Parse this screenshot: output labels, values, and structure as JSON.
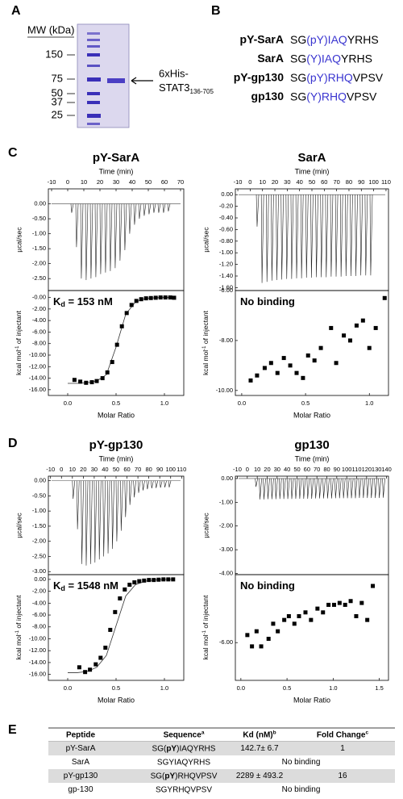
{
  "panel_labels": [
    "A",
    "B",
    "C",
    "D",
    "E"
  ],
  "gel": {
    "axis_title": "MW (kDa)",
    "markers": [
      "150",
      "75",
      "50",
      "37",
      "25"
    ],
    "band_label": [
      "6xHis-",
      "STAT3",
      "136-705"
    ]
  },
  "peptides": [
    {
      "name": "pY-SarA",
      "seq": [
        "SG",
        "(pY)IAQ",
        "YRHS"
      ]
    },
    {
      "name": "SarA",
      "seq": [
        "SG",
        "(Y)IAQ",
        "YRHS"
      ]
    },
    {
      "name": "pY-gp130",
      "seq": [
        "SG",
        "(pY)RHQ",
        "VPSV"
      ]
    },
    {
      "name": "gp130",
      "seq": [
        "SG",
        "(Y)RHQ",
        "VPSV"
      ]
    }
  ],
  "chart_data": [
    {
      "type": "thermogram",
      "title": "pY-SarA",
      "xaxis": "top",
      "xlabel": "Time (min)",
      "ylabel": "µcal/sec",
      "xlim": [
        -12,
        72
      ],
      "ylim": [
        -2.9,
        0.5
      ],
      "xticks": [
        -10,
        0,
        10,
        20,
        30,
        40,
        50,
        60,
        70
      ],
      "yticks": [
        {
          "value": 0,
          "label": "0.00"
        },
        {
          "value": -0.5,
          "label": "-0.50"
        },
        {
          "value": -1,
          "label": "-1.00"
        },
        {
          "value": -1.5,
          "label": "-1.50"
        },
        {
          "value": -2,
          "label": "-2.00"
        },
        {
          "value": -2.5,
          "label": "-2.50"
        }
      ],
      "x": [
        2,
        5,
        8,
        11,
        14,
        17,
        20,
        23,
        26,
        29,
        32,
        35,
        38,
        41,
        44,
        47,
        50,
        53,
        56,
        59,
        62
      ],
      "values": [
        -0.3,
        -1.45,
        -2.5,
        -2.55,
        -2.5,
        -2.45,
        -2.35,
        -2.3,
        -2.25,
        -2.15,
        -1.9,
        -1.55,
        -1.0,
        -0.7,
        -0.5,
        -0.4,
        -0.35,
        -0.3,
        -0.3,
        -0.3,
        -0.25
      ]
    },
    {
      "type": "isotherm",
      "xlabel": "Molar Ratio",
      "ylabel": [
        "kcal mol",
        "-1",
        " of injectant"
      ],
      "annotation": [
        "K",
        "d",
        " = 153 nM"
      ],
      "xlim": [
        -0.2,
        1.2
      ],
      "ylim": [
        -17,
        1.2
      ],
      "xticks": [
        {
          "value": 0,
          "label": "0.0"
        },
        0.5,
        {
          "value": 1,
          "label": "1.0"
        }
      ],
      "yticks": [
        {
          "value": 0,
          "label": "-0.00"
        },
        {
          "value": -2,
          "label": "-2.00"
        },
        {
          "value": -4,
          "label": "-4.00"
        },
        {
          "value": -6,
          "label": "-6.00"
        },
        {
          "value": -8,
          "label": "-8.00"
        },
        {
          "value": -10,
          "label": "-10.00"
        },
        {
          "value": -12,
          "label": "-12.00"
        },
        {
          "value": -14,
          "label": "-14.00"
        },
        {
          "value": -16,
          "label": "-16.00"
        }
      ],
      "x": [
        0.07,
        0.13,
        0.19,
        0.25,
        0.3,
        0.36,
        0.41,
        0.46,
        0.51,
        0.56,
        0.61,
        0.66,
        0.71,
        0.76,
        0.81,
        0.86,
        0.91,
        0.96,
        1.01,
        1.06,
        1.1
      ],
      "values": [
        -14.3,
        -14.6,
        -14.8,
        -14.7,
        -14.5,
        -14.0,
        -13.0,
        -11.2,
        -8.2,
        -5.0,
        -2.7,
        -1.3,
        -0.6,
        -0.3,
        -0.15,
        -0.1,
        -0.05,
        0,
        0,
        0,
        -0.05
      ],
      "fit_x": [
        0,
        0.1,
        0.2,
        0.3,
        0.4,
        0.5,
        0.6,
        0.7,
        0.8,
        0.9,
        1.0,
        1.1
      ],
      "fit_values": [
        -14.9,
        -14.9,
        -14.8,
        -14.5,
        -13.4,
        -8.6,
        -2.9,
        -0.8,
        -0.2,
        -0.05,
        0,
        0
      ]
    },
    {
      "type": "thermogram",
      "title": "SarA",
      "xaxis": "top",
      "xlabel": "Time (min)",
      "ylabel": "µcal/sec",
      "xlim": [
        -12,
        112
      ],
      "ylim": [
        -1.65,
        0.1
      ],
      "xticks": [
        -10,
        0,
        10,
        20,
        30,
        40,
        50,
        60,
        70,
        80,
        90,
        100,
        110
      ],
      "yticks": [
        {
          "value": 0,
          "label": "0.00"
        },
        {
          "value": -0.2,
          "label": "-0.20"
        },
        {
          "value": -0.4,
          "label": "-0.40"
        },
        {
          "value": -0.6,
          "label": "-0.60"
        },
        {
          "value": -0.8,
          "label": "-0.80"
        },
        {
          "value": -1,
          "label": "-1.00"
        },
        {
          "value": -1.2,
          "label": "-1.20"
        },
        {
          "value": -1.4,
          "label": "-1.40"
        },
        {
          "value": -1.6,
          "label": "-1.60"
        }
      ],
      "x": [
        5,
        9,
        13,
        17,
        21,
        25,
        29,
        33,
        37,
        41,
        45,
        49,
        53,
        57,
        61,
        65,
        69,
        73,
        77,
        81,
        85,
        89,
        93,
        97
      ],
      "values": [
        -0.55,
        -1.52,
        -1.5,
        -1.48,
        -1.47,
        -1.46,
        -1.45,
        -1.45,
        -1.44,
        -1.44,
        -1.43,
        -1.43,
        -1.42,
        -1.42,
        -1.42,
        -1.41,
        -1.41,
        -1.41,
        -1.4,
        -1.4,
        -1.4,
        -1.39,
        -1.39,
        -1.39
      ]
    },
    {
      "type": "isotherm",
      "xlabel": "Molar Ratio",
      "ylabel": [
        "kcal mol",
        "-1",
        " of injectant"
      ],
      "annotation": [
        "No binding"
      ],
      "xlim": [
        -0.05,
        1.15
      ],
      "ylim": [
        -10.2,
        -6.0
      ],
      "xticks": [
        {
          "value": 0,
          "label": "0.0"
        },
        0.5,
        {
          "value": 1,
          "label": "1.0"
        }
      ],
      "yticks": [
        {
          "value": -6,
          "label": "-6.00"
        },
        {
          "value": -8,
          "label": "-8.00"
        },
        {
          "value": -10,
          "label": "-10.00"
        }
      ],
      "x": [
        0.07,
        0.12,
        0.18,
        0.23,
        0.28,
        0.33,
        0.38,
        0.43,
        0.48,
        0.52,
        0.57,
        0.62,
        0.7,
        0.74,
        0.8,
        0.85,
        0.9,
        0.95,
        1.0,
        1.05,
        1.12
      ],
      "values": [
        -9.6,
        -9.4,
        -9.1,
        -8.9,
        -9.3,
        -8.7,
        -9.0,
        -9.3,
        -9.5,
        -8.6,
        -8.8,
        -8.3,
        -7.5,
        -8.9,
        -7.8,
        -8.0,
        -7.4,
        -7.2,
        -8.3,
        -7.5,
        -6.3
      ]
    },
    {
      "type": "thermogram",
      "title": "pY-gp130",
      "xaxis": "top",
      "xlabel": "Time (min)",
      "ylabel": "µcal/sec",
      "xlim": [
        -12,
        112
      ],
      "ylim": [
        -3.1,
        0.15
      ],
      "xticks": [
        -10,
        0,
        10,
        20,
        30,
        40,
        50,
        60,
        70,
        80,
        90,
        100,
        110
      ],
      "yticks": [
        {
          "value": 0,
          "label": "0.00"
        },
        {
          "value": -0.5,
          "label": "-0.50"
        },
        {
          "value": -1,
          "label": "-1.00"
        },
        {
          "value": -1.5,
          "label": "-1.50"
        },
        {
          "value": -2,
          "label": "-2.00"
        },
        {
          "value": -2.5,
          "label": "-2.50"
        },
        {
          "value": -3,
          "label": "-3.00"
        }
      ],
      "x": [
        10,
        14,
        18,
        22,
        26,
        30,
        34,
        38,
        42,
        46,
        50,
        54,
        58,
        62,
        66,
        70,
        74,
        78,
        82,
        86,
        90,
        94,
        98
      ],
      "values": [
        -0.6,
        -1.6,
        -2.75,
        -2.8,
        -2.75,
        -2.7,
        -2.6,
        -2.5,
        -2.4,
        -2.25,
        -2.0,
        -1.65,
        -1.2,
        -0.8,
        -0.55,
        -0.4,
        -0.32,
        -0.28,
        -0.25,
        -0.24,
        -0.23,
        -0.22,
        -0.22
      ]
    },
    {
      "type": "isotherm",
      "xlabel": "Molar Ratio",
      "ylabel": [
        "kcal mol",
        "-1",
        " of injectant"
      ],
      "annotation": [
        "K",
        "d",
        " = 1548 nM"
      ],
      "xlim": [
        -0.2,
        1.2
      ],
      "ylim": [
        -17,
        0.8
      ],
      "xticks": [
        {
          "value": 0,
          "label": "0.0"
        },
        0.5,
        {
          "value": 1,
          "label": "1.0"
        }
      ],
      "yticks": [
        {
          "value": 0,
          "label": "0.00"
        },
        {
          "value": -2,
          "label": "-2.00"
        },
        {
          "value": -4,
          "label": "-4.00"
        },
        {
          "value": -6,
          "label": "-6.00"
        },
        {
          "value": -8,
          "label": "-8.00"
        },
        {
          "value": -10,
          "label": "-10.00"
        },
        {
          "value": -12,
          "label": "-12.00"
        },
        {
          "value": -14,
          "label": "-14.00"
        },
        {
          "value": -16,
          "label": "-16.00"
        }
      ],
      "x": [
        0.12,
        0.18,
        0.23,
        0.29,
        0.34,
        0.39,
        0.44,
        0.49,
        0.54,
        0.59,
        0.64,
        0.69,
        0.74,
        0.79,
        0.84,
        0.89,
        0.94,
        0.99,
        1.04,
        1.09
      ],
      "values": [
        -14.8,
        -15.6,
        -15.2,
        -14.3,
        -13.2,
        -11.5,
        -8.5,
        -5.5,
        -3.2,
        -1.7,
        -0.9,
        -0.5,
        -0.3,
        -0.2,
        -0.1,
        -0.1,
        -0.05,
        0,
        0,
        0
      ],
      "fit_x": [
        0,
        0.1,
        0.2,
        0.3,
        0.4,
        0.5,
        0.6,
        0.7,
        0.8,
        0.9,
        1.0,
        1.1
      ],
      "fit_values": [
        -15.7,
        -15.7,
        -15.5,
        -14.8,
        -12.8,
        -7.8,
        -2.8,
        -0.9,
        -0.3,
        -0.1,
        0,
        0
      ]
    },
    {
      "type": "thermogram",
      "title": "gp130",
      "xaxis": "top",
      "xlabel": "Time (min)",
      "ylabel": "µcal/sec",
      "xlim": [
        -12,
        142
      ],
      "ylim": [
        -4.05,
        0.1
      ],
      "xticks": [
        -10,
        0,
        10,
        20,
        30,
        40,
        50,
        60,
        70,
        80,
        90,
        100,
        110,
        120,
        130,
        140
      ],
      "yticks": [
        {
          "value": 0,
          "label": "0.00"
        },
        {
          "value": -1,
          "label": "-1.00"
        },
        {
          "value": -2,
          "label": "-2.00"
        },
        {
          "value": -3,
          "label": "-3.00"
        },
        {
          "value": -4,
          "label": "-4.00"
        }
      ],
      "x": [
        8,
        12,
        16,
        20,
        24,
        28,
        32,
        36,
        40,
        44,
        48,
        52,
        56,
        60,
        64,
        68,
        72,
        76,
        80,
        84,
        88,
        92,
        96,
        100,
        104,
        108,
        112,
        116,
        120,
        124,
        128,
        132,
        136
      ],
      "values": [
        -0.35,
        -0.88,
        -0.88,
        -0.87,
        -0.87,
        -0.87,
        -0.86,
        -0.86,
        -0.86,
        -0.86,
        -0.85,
        -0.85,
        -0.85,
        -0.85,
        -0.85,
        -0.84,
        -0.84,
        -0.84,
        -0.84,
        -0.84,
        -0.83,
        -0.83,
        -0.83,
        -0.83,
        -0.83,
        -0.83,
        -0.82,
        -0.82,
        -0.82,
        -0.82,
        -0.82,
        -0.82,
        -0.81
      ]
    },
    {
      "type": "isotherm",
      "xlabel": "Molar Ratio",
      "ylabel": [
        "kcal mol",
        "-1",
        " of injectant"
      ],
      "annotation": [
        "No binding"
      ],
      "xlim": [
        -0.06,
        1.6
      ],
      "ylim": [
        -7.0,
        -4.2
      ],
      "xticks": [
        {
          "value": 0,
          "label": "0.0"
        },
        0.5,
        {
          "value": 1,
          "label": "1.0"
        },
        1.5
      ],
      "yticks": [
        {
          "value": -6,
          "label": "-6.00"
        }
      ],
      "x": [
        0.07,
        0.12,
        0.17,
        0.22,
        0.3,
        0.35,
        0.4,
        0.47,
        0.52,
        0.58,
        0.63,
        0.7,
        0.76,
        0.83,
        0.89,
        0.95,
        1.01,
        1.07,
        1.13,
        1.19,
        1.25,
        1.31,
        1.37,
        1.43
      ],
      "values": [
        -5.8,
        -6.1,
        -5.7,
        -6.1,
        -5.9,
        -5.5,
        -5.7,
        -5.4,
        -5.3,
        -5.5,
        -5.3,
        -5.2,
        -5.4,
        -5.1,
        -5.2,
        -5.0,
        -5.0,
        -4.95,
        -5.0,
        -4.9,
        -5.3,
        -4.95,
        -5.4,
        -4.5
      ]
    }
  ],
  "table": {
    "headers": [
      [
        "Peptide"
      ],
      [
        "Sequence",
        "a"
      ],
      [
        "Kd (nM)",
        "b"
      ],
      [
        "Fold Change",
        "c"
      ]
    ],
    "rows": [
      {
        "peptide": "pY-SarA",
        "sequence": [
          "SG(",
          "pY",
          ")IAQYRHS"
        ],
        "kd": "142.7± 6.7",
        "fold": "1"
      },
      {
        "peptide": "SarA",
        "sequence": [
          "SGYIAQYRHS"
        ],
        "result": "No binding"
      },
      {
        "peptide": "pY-gp130",
        "sequence": [
          "SG(",
          "pY",
          ")RHQVPSV"
        ],
        "kd": "2289 ± 493.2",
        "fold": "16"
      },
      {
        "peptide": "gp-130",
        "sequence": [
          "SGYRHQVPSV"
        ],
        "result": "No binding"
      }
    ]
  }
}
